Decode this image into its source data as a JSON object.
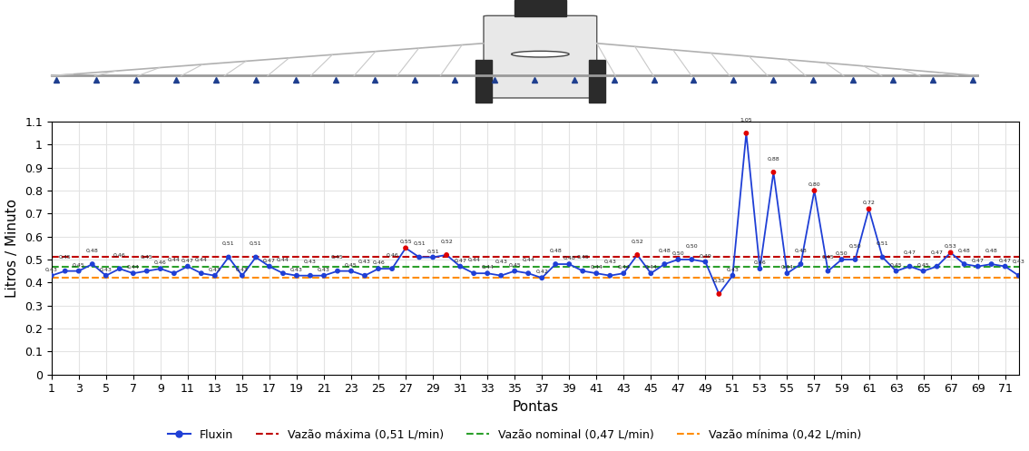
{
  "chart_data": {
    "type": "line",
    "x_label": "Pontas",
    "y_label": "Litros / Minuto",
    "x": [
      1,
      2,
      3,
      4,
      5,
      6,
      7,
      8,
      9,
      10,
      11,
      12,
      13,
      14,
      15,
      16,
      17,
      18,
      19,
      20,
      21,
      22,
      23,
      24,
      25,
      26,
      27,
      28,
      29,
      30,
      31,
      32,
      33,
      34,
      35,
      36,
      37,
      38,
      39,
      40,
      41,
      42,
      43,
      44,
      45,
      46,
      47,
      48,
      49,
      50,
      51,
      52,
      53,
      54,
      55,
      56,
      57,
      58,
      59,
      60,
      61,
      62,
      63,
      64,
      65,
      66,
      67,
      68,
      69,
      70,
      71,
      72
    ],
    "series": [
      {
        "name": "Fluxin",
        "color": "#1f3fd6",
        "marker": "circle",
        "line_style": "solid",
        "values": [
          0.43,
          0.45,
          0.45,
          0.48,
          0.43,
          0.46,
          0.44,
          0.45,
          0.46,
          0.44,
          0.47,
          0.44,
          0.43,
          0.51,
          0.43,
          0.51,
          0.47,
          0.44,
          0.43,
          0.43,
          0.43,
          0.45,
          0.45,
          0.43,
          0.46,
          0.46,
          0.55,
          0.51,
          0.51,
          0.52,
          0.47,
          0.44,
          0.44,
          0.43,
          0.45,
          0.44,
          0.42,
          0.48,
          0.48,
          0.45,
          0.44,
          0.43,
          0.44,
          0.52,
          0.44,
          0.48,
          0.5,
          0.5,
          0.49,
          0.35,
          0.43,
          1.05,
          0.46,
          0.88,
          0.44,
          0.48,
          0.8,
          0.45,
          0.5,
          0.5,
          0.72,
          0.51,
          0.45,
          0.47,
          0.45,
          0.47,
          0.53,
          0.48,
          0.47,
          0.48,
          0.47,
          0.43
        ],
        "value_labels": [
          "0,43",
          "0,45",
          "0,45",
          "0,48",
          "0,43",
          "0,46",
          "0,44",
          "0,45",
          "0,46",
          "0,44",
          "0,47",
          "0,44",
          "0,43",
          "0,51",
          "0,43",
          "0,51",
          "0,47",
          "0,44",
          "0,43",
          "0,43",
          "0,43",
          "0,45",
          "0,45",
          "0,43",
          "0,46",
          "0,46",
          "0,55",
          "0,51",
          "0,51",
          "0,52",
          "0,47",
          "0,44",
          "0,44",
          "0,43",
          "0,45",
          "0,44",
          "0,42",
          "0,48",
          "0,48",
          "0,45",
          "0,44",
          "0,43",
          "0,44",
          "0,52",
          "0,44",
          "0,48",
          "0,50",
          "0,50",
          "0,49",
          "0,35",
          "0,43",
          "1,05",
          "0,46",
          "0,88",
          "0,44",
          "0,48",
          "0,80",
          "0,45",
          "0,50",
          "0,50",
          "0,72",
          "0,51",
          "0,45",
          "0,47",
          "0,45",
          "0,47",
          "0,53",
          "0,48",
          "0,47",
          "0,48",
          "0,47",
          "0,43"
        ]
      }
    ],
    "reference_lines": [
      {
        "name": "Vazão máxima (0,51 L/min)",
        "value": 0.51,
        "color": "#c00000",
        "line_style": "dashed"
      },
      {
        "name": "Vazão nominal (0,47 L/min)",
        "value": 0.47,
        "color": "#2ca02c",
        "line_style": "dashed"
      },
      {
        "name": "Vazão mínima (0,42 L/min)",
        "value": 0.42,
        "color": "#ff8c00",
        "line_style": "dashed"
      }
    ],
    "xlim": [
      1,
      72
    ],
    "xticks": [
      1,
      3,
      5,
      7,
      9,
      11,
      13,
      15,
      17,
      19,
      21,
      23,
      25,
      27,
      29,
      31,
      33,
      35,
      37,
      39,
      41,
      43,
      45,
      47,
      49,
      51,
      53,
      55,
      57,
      59,
      61,
      63,
      65,
      67,
      69,
      71
    ],
    "ylim": [
      0,
      1.1
    ],
    "yticks": [
      0,
      0.1,
      0.2,
      0.3,
      0.4,
      0.5,
      0.6,
      0.7,
      0.8,
      0.9,
      1,
      1.1
    ],
    "grid": true,
    "legend": "bottom",
    "data_labels": true
  }
}
